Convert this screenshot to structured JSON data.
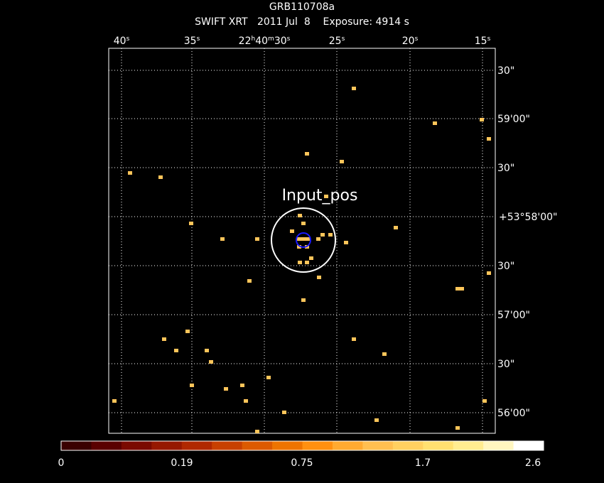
{
  "header": {
    "title": "GRB110708a",
    "subtitle": "SWIFT XRT   2011 Jul  8    Exposure: 4914 s"
  },
  "ra_labels": [
    [
      "40",
      "s"
    ],
    [
      "35",
      "s"
    ],
    [
      "22",
      "h",
      "40",
      "m",
      "30",
      "s"
    ],
    [
      "25",
      "s"
    ],
    [
      "20",
      "s"
    ],
    [
      "15",
      "s"
    ]
  ],
  "dec_labels": [
    "30\"",
    "59'00\"",
    "30\"",
    "+53°58'00\"",
    "30\"",
    "57'00\"",
    "30\"",
    "56'00\""
  ],
  "annotation": "Input_pos",
  "colorbar_labels": [
    "0",
    "0.19",
    "0.75",
    "1.7",
    "2.6"
  ]
}
